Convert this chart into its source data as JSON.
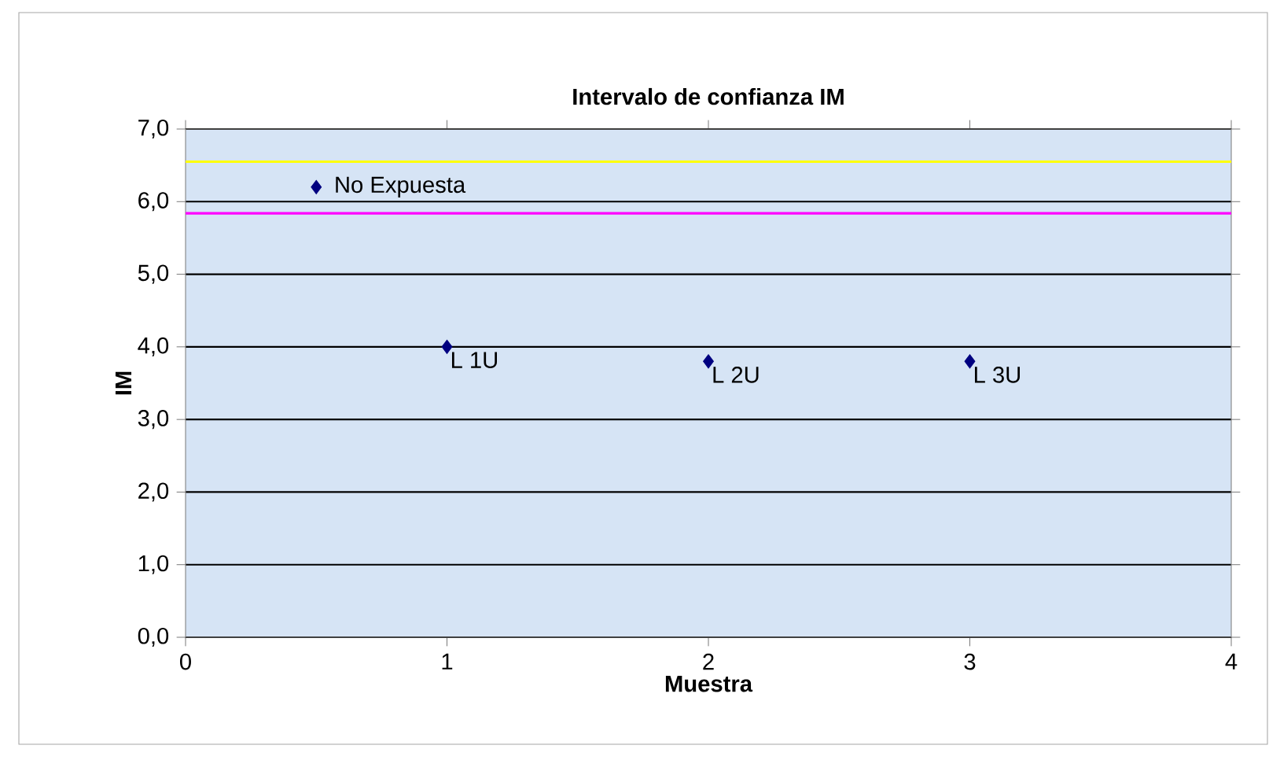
{
  "chart_data": {
    "type": "scatter",
    "title": "Intervalo de confianza  IM",
    "xlabel": "Muestra",
    "ylabel": "IM",
    "x": [
      0.5,
      1,
      2,
      3
    ],
    "series": [
      {
        "color": "#000080",
        "values": [
          6.2,
          4.0,
          3.8,
          3.8
        ]
      }
    ],
    "marker": "diamond",
    "xlim": [
      0,
      4
    ],
    "ylim": [
      0,
      7
    ],
    "xticks": [
      0,
      1,
      2,
      3,
      4
    ],
    "yticks": [
      {
        "value": 0,
        "label": "0,0"
      },
      {
        "value": 1,
        "label": "1,0"
      },
      {
        "value": 2,
        "label": "2,0"
      },
      {
        "value": 3,
        "label": "3,0"
      },
      {
        "value": 4,
        "label": "4,0"
      },
      {
        "value": 5,
        "label": "5,0"
      },
      {
        "value": 6,
        "label": "6,0"
      },
      {
        "value": 7,
        "label": "7,0"
      }
    ],
    "grid": "y",
    "ref_lines": [
      {
        "axis": "y",
        "value": 6.55,
        "color": "#ffff00"
      },
      {
        "axis": "y",
        "value": 5.84,
        "color": "#ff00ff"
      }
    ],
    "annotations": [
      {
        "text": "No Expuesta",
        "x": 0.5,
        "y": 6.2
      },
      {
        "text": "L 1U",
        "x": 1,
        "y": 4.0
      },
      {
        "text": "L 2U",
        "x": 2,
        "y": 3.8
      },
      {
        "text": "L 3U",
        "x": 3,
        "y": 3.8
      }
    ]
  }
}
